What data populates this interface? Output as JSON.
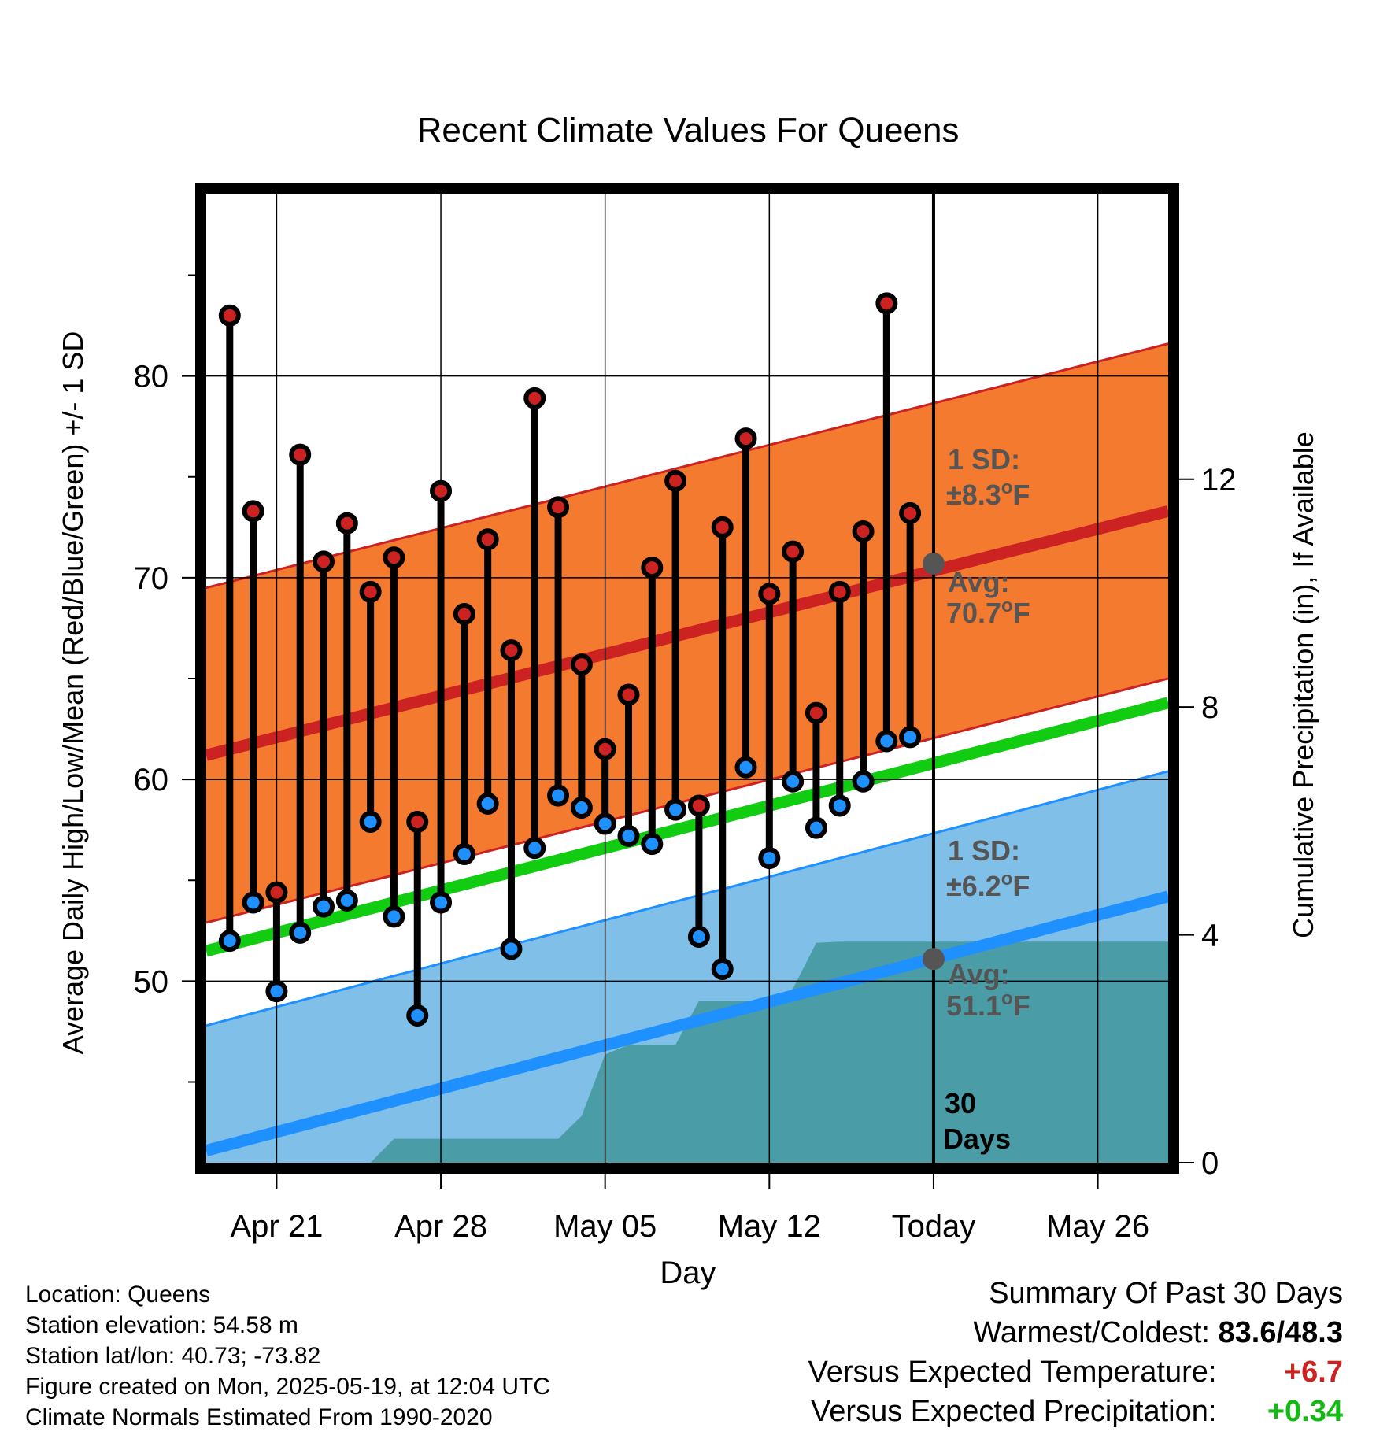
{
  "chart_data": {
    "type": "line",
    "title": "Recent Climate Values For Queens",
    "xlabel": "Day",
    "ylabel_left": "Average Daily High/Low/Mean (Red/Blue/Green) +/- 1 SD",
    "ylabel_right": "Cumulative Precipitation (in), If Available",
    "x_range": [
      "2025-04-18",
      "2025-05-29"
    ],
    "ylim_left": [
      41,
      89
    ],
    "ylim_right": [
      -0.0,
      17.0
    ],
    "yticks_left": [
      50,
      60,
      70,
      80
    ],
    "yticks_right": [
      0,
      4,
      8,
      12
    ],
    "x_tick_labels": [
      {
        "date": "2025-04-21",
        "label": "Apr 21"
      },
      {
        "date": "2025-04-28",
        "label": "Apr 28"
      },
      {
        "date": "2025-05-05",
        "label": "May 05"
      },
      {
        "date": "2025-05-12",
        "label": "May 12"
      },
      {
        "date": "2025-05-19",
        "label": "Today"
      },
      {
        "date": "2025-05-26",
        "label": "May 26"
      }
    ],
    "grid": true,
    "normals": {
      "avg_high": {
        "start": 61.2,
        "end": 73.3,
        "sd": 8.3,
        "color": "#cc2222",
        "band_color": "#f47a30"
      },
      "avg_low": {
        "start": 41.6,
        "end": 54.2,
        "sd": 6.2,
        "color": "#1e90ff",
        "band_color": "#80c0e8"
      },
      "avg_mean": {
        "start": 51.5,
        "end": 63.8,
        "color": "#11cc11"
      }
    },
    "daily": {
      "dates": [
        "2025-04-19",
        "2025-04-20",
        "2025-04-21",
        "2025-04-22",
        "2025-04-23",
        "2025-04-24",
        "2025-04-25",
        "2025-04-26",
        "2025-04-27",
        "2025-04-28",
        "2025-04-29",
        "2025-04-30",
        "2025-05-01",
        "2025-05-02",
        "2025-05-03",
        "2025-05-04",
        "2025-05-05",
        "2025-05-06",
        "2025-05-07",
        "2025-05-08",
        "2025-05-09",
        "2025-05-10",
        "2025-05-11",
        "2025-05-12",
        "2025-05-13",
        "2025-05-14",
        "2025-05-15",
        "2025-05-16",
        "2025-05-17",
        "2025-05-18"
      ],
      "highs": [
        83.0,
        73.3,
        54.4,
        76.1,
        70.8,
        72.7,
        69.3,
        71.0,
        57.9,
        74.3,
        68.2,
        71.9,
        66.4,
        78.9,
        73.5,
        65.7,
        61.5,
        64.2,
        70.5,
        74.8,
        58.7,
        72.5,
        76.9,
        69.2,
        71.3,
        63.3,
        69.3,
        72.3,
        83.6,
        73.2
      ],
      "lows": [
        52.0,
        53.9,
        49.5,
        52.4,
        53.7,
        54.0,
        57.9,
        53.2,
        48.3,
        53.9,
        56.3,
        58.8,
        51.6,
        56.6,
        59.2,
        58.6,
        57.8,
        57.2,
        56.8,
        58.5,
        52.2,
        50.6,
        60.6,
        56.1,
        59.9,
        57.6,
        58.7,
        59.9,
        61.9,
        62.1
      ],
      "high_color": "#cc2222",
      "low_color": "#1e90ff"
    },
    "cumulative_precip": {
      "dates": [
        "2025-04-18",
        "2025-04-25",
        "2025-04-26",
        "2025-04-27",
        "2025-05-03",
        "2025-05-04",
        "2025-05-05",
        "2025-05-06",
        "2025-05-08",
        "2025-05-09",
        "2025-05-12",
        "2025-05-13",
        "2025-05-14",
        "2025-05-15",
        "2025-05-29"
      ],
      "values": [
        0.0,
        0.0,
        0.42,
        0.42,
        0.42,
        0.82,
        1.9,
        2.07,
        2.07,
        2.84,
        2.84,
        3.05,
        3.86,
        3.88,
        3.88
      ],
      "color": "#4a9ca6"
    },
    "today_marker": {
      "date": "2025-05-19",
      "label": "Today",
      "window_label_1": "30",
      "window_label_2": "Days"
    },
    "annotations": {
      "high_sd_label": "1 SD:",
      "high_sd_value": "±8.3°F",
      "high_avg_label": "Avg:",
      "high_avg_value": "70.7°F",
      "high_avg": 70.7,
      "low_sd_label": "1 SD:",
      "low_sd_value": "±6.2°F",
      "low_avg_label": "Avg:",
      "low_avg_value": "51.1°F",
      "low_avg": 51.1
    }
  },
  "info": {
    "location": "Location: Queens",
    "elevation": "Station elevation: 54.58 m",
    "latlon": "Station lat/lon: 40.73; -73.82",
    "created": "Figure created on Mon, 2025-05-19, at 12:04 UTC",
    "normals": "Climate Normals Estimated From 1990-2020"
  },
  "summary": {
    "title": "Summary Of Past 30 Days",
    "warm_cold_label": "Warmest/Coldest:",
    "warm_cold_value": "83.6/48.3",
    "temp_label": "Versus Expected Temperature:",
    "temp_value": "+6.7",
    "temp_color": "#cc2222",
    "precip_label": "Versus Expected Precipitation:",
    "precip_value": "+0.34",
    "precip_color": "#11bb11"
  }
}
